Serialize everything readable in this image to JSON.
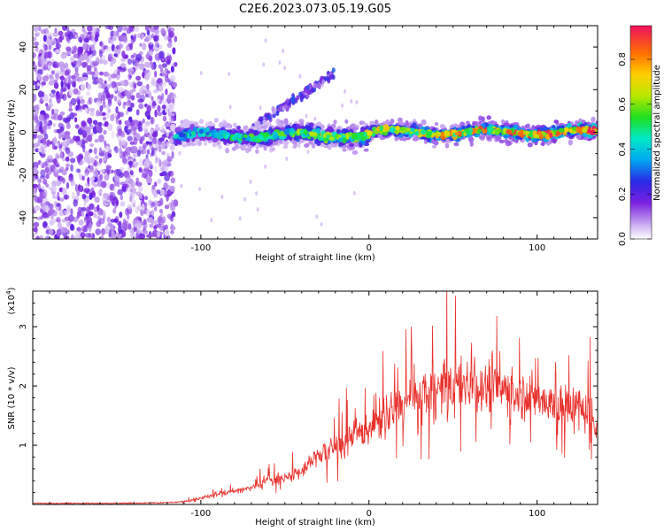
{
  "title": "C2E6.2023.073.05.19.G05",
  "chart_data": [
    {
      "type": "heatmap",
      "xlabel": "Height of straight line (km)",
      "ylabel": "Frequency (Hz)",
      "xlim": [
        -200,
        136
      ],
      "ylim": [
        -50,
        50
      ],
      "xticks": [
        -100,
        0,
        100
      ],
      "yticks": [
        -40,
        -20,
        0,
        20,
        40
      ],
      "colorbar": {
        "label": "Normalized spectral amplitude",
        "range": [
          0.0,
          0.95
        ],
        "ticks": [
          0.0,
          0.2,
          0.4,
          0.6,
          0.8
        ]
      },
      "regions": [
        {
          "name": "noise",
          "x_range": [
            -200,
            -115
          ],
          "freq_range": [
            -50,
            50
          ],
          "amplitude": 0.1
        },
        {
          "name": "main-signal",
          "x_range": [
            -115,
            136
          ],
          "center_freq_hz": 0,
          "bandwidth_hz": 8,
          "amplitude_start": 0.4,
          "amplitude_end": 0.9
        },
        {
          "name": "rising-branch",
          "x_range": [
            -70,
            -20
          ],
          "freq_range": [
            2,
            28
          ],
          "amplitude": 0.15
        }
      ]
    },
    {
      "type": "line",
      "xlabel": "Height of straight line (km)",
      "ylabel": "SNR (10 * v/v)",
      "exponent_label": "(x10",
      "exponent_power": "4",
      "exponent_close": ")",
      "xlim": [
        -200,
        136
      ],
      "ylim": [
        0,
        3.6
      ],
      "xticks": [
        -100,
        0,
        100
      ],
      "yticks": [
        1,
        2,
        3
      ],
      "color": "#e8312c",
      "series": [
        {
          "name": "SNR",
          "x": [
            -200,
            -150,
            -120,
            -110,
            -100,
            -90,
            -80,
            -70,
            -60,
            -50,
            -40,
            -30,
            -20,
            -10,
            0,
            10,
            20,
            30,
            40,
            50,
            60,
            70,
            80,
            90,
            100,
            110,
            120,
            130,
            136
          ],
          "y": [
            0.02,
            0.02,
            0.03,
            0.05,
            0.1,
            0.18,
            0.22,
            0.28,
            0.4,
            0.45,
            0.55,
            0.85,
            0.95,
            1.1,
            1.3,
            1.5,
            1.65,
            1.8,
            1.95,
            2.0,
            2.05,
            2.0,
            1.95,
            1.85,
            1.8,
            1.7,
            1.65,
            1.6,
            1.35
          ]
        }
      ]
    }
  ]
}
